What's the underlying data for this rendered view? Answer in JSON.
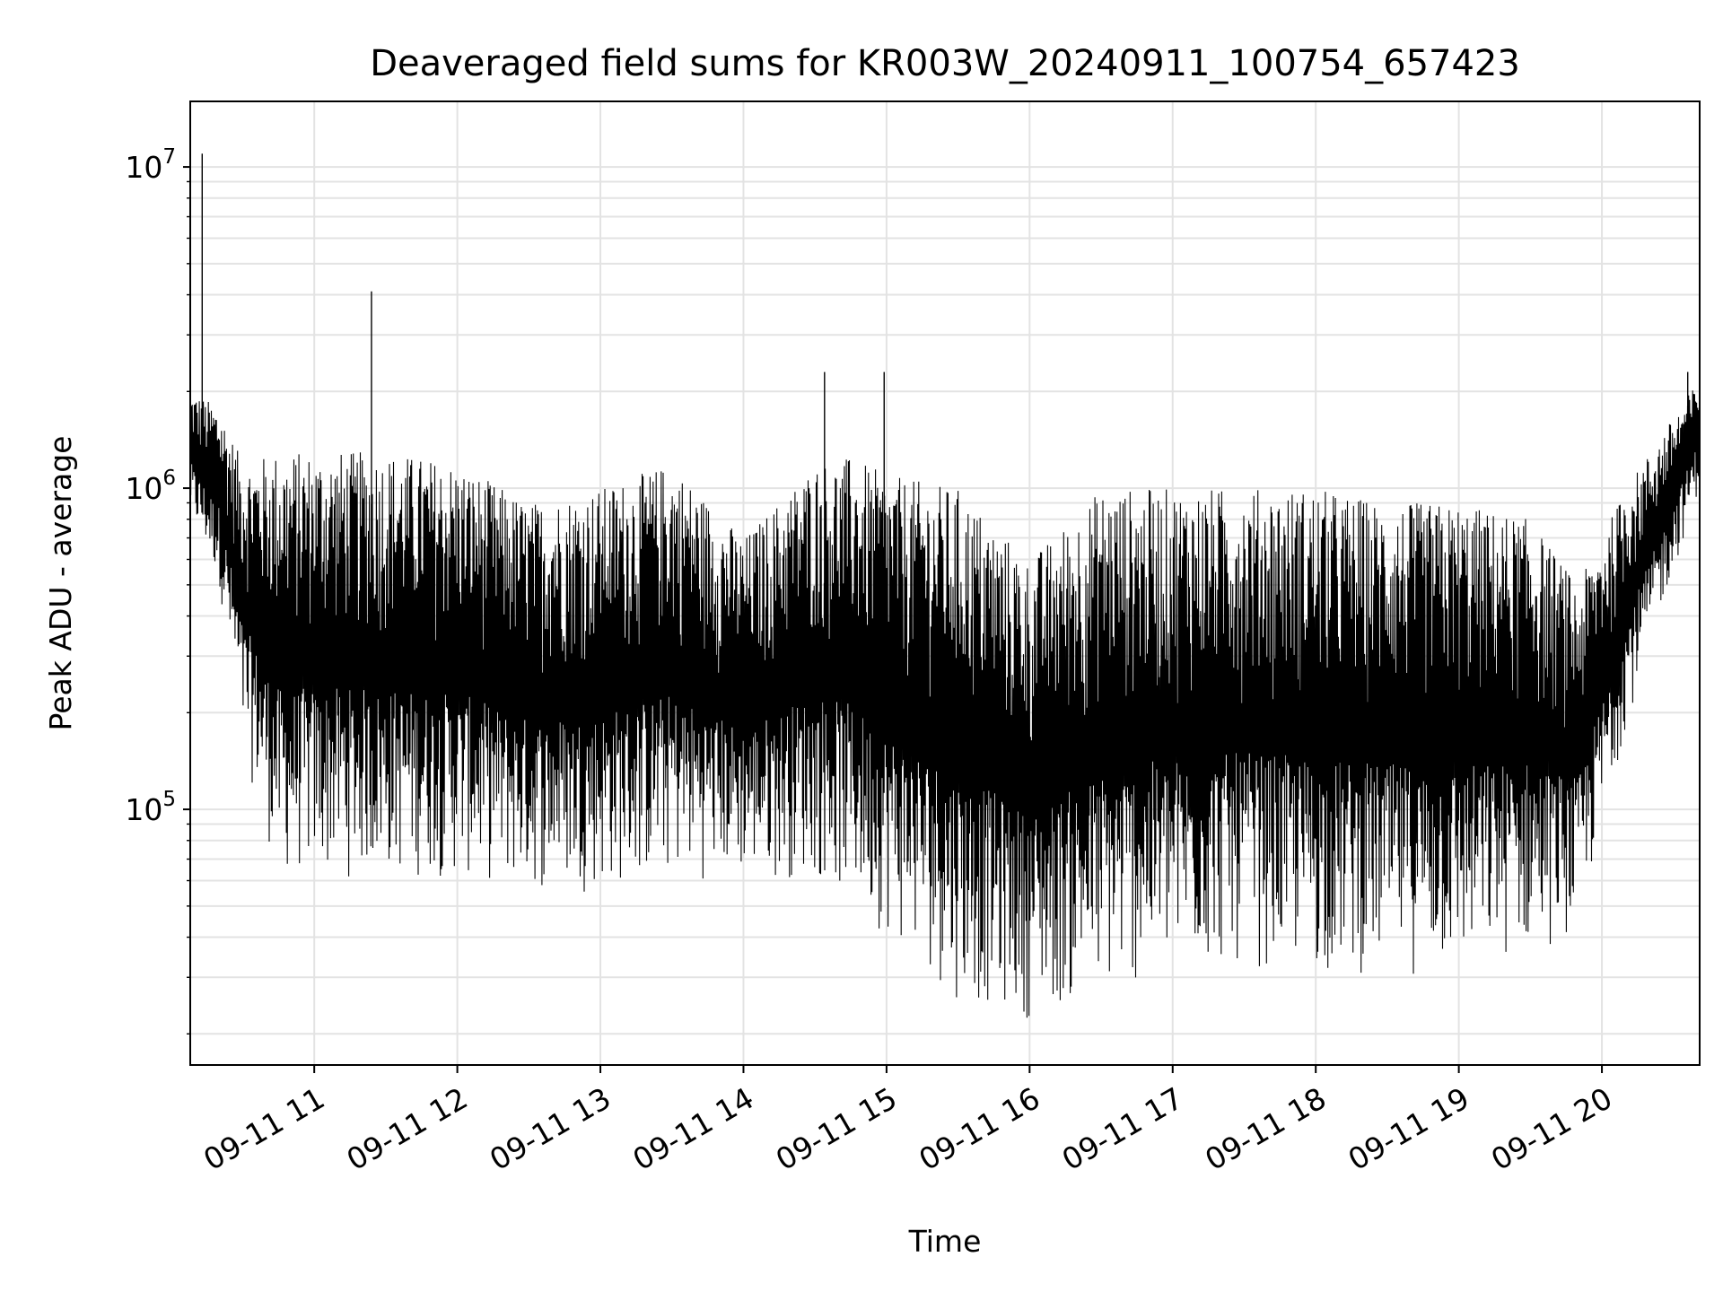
{
  "chart_data": {
    "type": "line",
    "title": "Deaveraged field sums for KR003W_20240911_100754_657423",
    "xlabel": "Time",
    "ylabel": "Peak ADU - average",
    "y_scale": "log",
    "ylim": [
      16000,
      16000000
    ],
    "xlim": [
      "2024-09-11 10:08",
      "2024-09-11 20:41"
    ],
    "grid": true,
    "legend": "none",
    "line_color": "#000000",
    "x_ticks": [
      {
        "t": "2024-09-11 11:00",
        "label": "09-11 11"
      },
      {
        "t": "2024-09-11 12:00",
        "label": "09-11 12"
      },
      {
        "t": "2024-09-11 13:00",
        "label": "09-11 13"
      },
      {
        "t": "2024-09-11 14:00",
        "label": "09-11 14"
      },
      {
        "t": "2024-09-11 15:00",
        "label": "09-11 15"
      },
      {
        "t": "2024-09-11 16:00",
        "label": "09-11 16"
      },
      {
        "t": "2024-09-11 17:00",
        "label": "09-11 17"
      },
      {
        "t": "2024-09-11 18:00",
        "label": "09-11 18"
      },
      {
        "t": "2024-09-11 19:00",
        "label": "09-11 19"
      },
      {
        "t": "2024-09-11 20:00",
        "label": "09-11 20"
      }
    ],
    "y_ticks": [
      {
        "value": 100000,
        "base": "10",
        "exp": "5"
      },
      {
        "value": 1000000,
        "base": "10",
        "exp": "6"
      },
      {
        "value": 10000000,
        "base": "10",
        "exp": "7"
      }
    ],
    "envelope": [
      {
        "t": "2024-09-11 10:08",
        "low": 800000,
        "high": 2000000
      },
      {
        "t": "2024-09-11 10:20",
        "low": 500000,
        "high": 1800000
      },
      {
        "t": "2024-09-11 10:30",
        "low": 150000,
        "high": 1200000
      },
      {
        "t": "2024-09-11 10:45",
        "low": 60000,
        "high": 1300000
      },
      {
        "t": "2024-09-11 11:00",
        "low": 60000,
        "high": 1300000
      },
      {
        "t": "2024-09-11 11:30",
        "low": 60000,
        "high": 1300000
      },
      {
        "t": "2024-09-11 12:00",
        "low": 60000,
        "high": 1200000
      },
      {
        "t": "2024-09-11 12:30",
        "low": 55000,
        "high": 900000
      },
      {
        "t": "2024-09-11 13:00",
        "low": 55000,
        "high": 1000000
      },
      {
        "t": "2024-09-11 13:30",
        "low": 60000,
        "high": 1200000
      },
      {
        "t": "2024-09-11 14:00",
        "low": 60000,
        "high": 700000
      },
      {
        "t": "2024-09-11 14:30",
        "low": 60000,
        "high": 1200000
      },
      {
        "t": "2024-09-11 14:45",
        "low": 50000,
        "high": 1250000
      },
      {
        "t": "2024-09-11 15:00",
        "low": 40000,
        "high": 1100000
      },
      {
        "t": "2024-09-11 15:30",
        "low": 25000,
        "high": 1000000
      },
      {
        "t": "2024-09-11 16:00",
        "low": 22000,
        "high": 600000
      },
      {
        "t": "2024-09-11 16:30",
        "low": 25000,
        "high": 1000000
      },
      {
        "t": "2024-09-11 17:00",
        "low": 30000,
        "high": 1000000
      },
      {
        "t": "2024-09-11 17:30",
        "low": 32000,
        "high": 1000000
      },
      {
        "t": "2024-09-11 18:00",
        "low": 30000,
        "high": 1000000
      },
      {
        "t": "2024-09-11 18:30",
        "low": 30000,
        "high": 900000
      },
      {
        "t": "2024-09-11 19:00",
        "low": 30000,
        "high": 900000
      },
      {
        "t": "2024-09-11 19:30",
        "low": 35000,
        "high": 800000
      },
      {
        "t": "2024-09-11 19:50",
        "low": 40000,
        "high": 500000
      },
      {
        "t": "2024-09-11 20:10",
        "low": 180000,
        "high": 1000000
      },
      {
        "t": "2024-09-11 20:41",
        "low": 1000000,
        "high": 2200000
      }
    ],
    "spikes": [
      {
        "t": "2024-09-11 10:13",
        "value": 11000000
      },
      {
        "t": "2024-09-11 11:24",
        "value": 4100000
      },
      {
        "t": "2024-09-11 14:34",
        "value": 2300000
      },
      {
        "t": "2024-09-11 14:59",
        "value": 2300000
      },
      {
        "t": "2024-09-11 20:36",
        "value": 2300000
      }
    ]
  }
}
